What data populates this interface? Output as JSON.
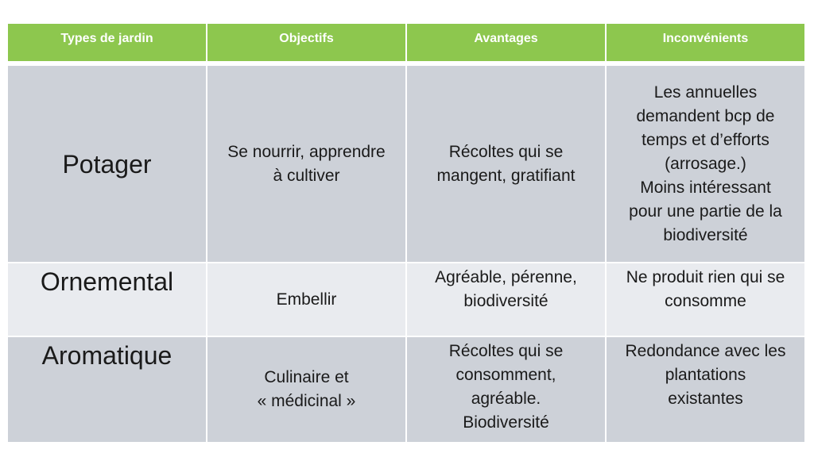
{
  "colors": {
    "header_bg": "#8dc74e",
    "header_text": "#ffffff",
    "row_dark_bg": "#cdd1d8",
    "row_light_bg": "#e9ebef",
    "body_text": "#1a1a1a",
    "page_bg": "#ffffff"
  },
  "table": {
    "columns": [
      {
        "label": "Types de jardin"
      },
      {
        "label": "Objectifs"
      },
      {
        "label": "Avantages"
      },
      {
        "label": "Inconvénients"
      }
    ],
    "rows": [
      {
        "type": "Potager",
        "objectifs": "Se nourrir, apprendre\nà cultiver",
        "avantages": "Récoltes qui se\nmangent, gratifiant",
        "inconvenients": "Les annuelles\ndemandent bcp de\ntemps et d’efforts\n(arrosage.)\nMoins intéressant\npour une partie de la\nbiodiversité"
      },
      {
        "type": "Ornemental",
        "objectifs": "Embellir",
        "avantages": "Agréable, pérenne,\nbiodiversité",
        "inconvenients": "Ne produit rien qui se\nconsomme"
      },
      {
        "type": "Aromatique",
        "objectifs": "Culinaire et\n« médicinal »",
        "avantages": "Récoltes qui se\nconsomment,\nagréable.\nBiodiversité",
        "inconvenients": "Redondance avec les\nplantations\nexistantes"
      }
    ]
  }
}
